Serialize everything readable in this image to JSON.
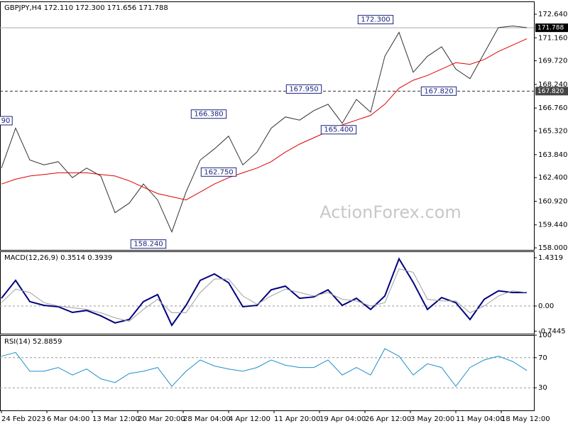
{
  "chart_data": [
    {
      "type": "line",
      "title": "GBPJPY,H4  172.110 172.300 171.656 171.788",
      "watermark": "ActionForex.com",
      "ylim": [
        157.87,
        173.44
      ],
      "yticks": [
        {
          "value": 172.64,
          "label": "172.640"
        },
        {
          "value": 171.16,
          "label": "171.160"
        },
        {
          "value": 169.72,
          "label": "169.720"
        },
        {
          "value": 168.24,
          "label": "168.240"
        },
        {
          "value": 166.76,
          "label": "166.760"
        },
        {
          "value": 165.32,
          "label": "165.320"
        },
        {
          "value": 163.84,
          "label": "163.840"
        },
        {
          "value": 162.4,
          "label": "162.400"
        },
        {
          "value": 160.92,
          "label": "160.920"
        },
        {
          "value": 159.44,
          "label": "159.440"
        },
        {
          "value": 158.0,
          "label": "158.000"
        }
      ],
      "series": [
        {
          "name": "GBPJPY",
          "color": "#333333",
          "values": [
            163.0,
            165.5,
            163.5,
            163.2,
            163.4,
            162.4,
            163.0,
            162.5,
            160.2,
            160.8,
            162.0,
            161.0,
            159.0,
            161.5,
            163.5,
            164.2,
            165.0,
            163.2,
            164.0,
            165.5,
            166.2,
            166.0,
            166.6,
            167.0,
            165.8,
            167.3,
            166.5,
            170.0,
            171.5,
            169.0,
            170.0,
            170.6,
            169.2,
            168.6,
            170.2,
            171.8,
            171.9,
            171.8
          ]
        },
        {
          "name": "MA",
          "color": "#e00000",
          "values": [
            162.0,
            162.3,
            162.5,
            162.6,
            162.7,
            162.7,
            162.7,
            162.6,
            162.5,
            162.2,
            161.8,
            161.4,
            161.2,
            161.0,
            161.5,
            162.0,
            162.4,
            162.7,
            163.0,
            163.4,
            164.0,
            164.5,
            164.9,
            165.3,
            165.7,
            166.0,
            166.3,
            167.0,
            168.0,
            168.5,
            168.8,
            169.2,
            169.6,
            169.5,
            169.8,
            170.3,
            170.7,
            171.1
          ]
        }
      ],
      "levels": [
        {
          "value": 171.788,
          "label": "171.788",
          "style": "solid"
        },
        {
          "value": 167.82,
          "label": "167.820",
          "style": "dashed"
        }
      ],
      "annotations": [
        {
          "label": "172.300",
          "value": 172.3
        },
        {
          "label": "167.950",
          "value": 167.95
        },
        {
          "label": "166.380",
          "value": 166.38
        },
        {
          "label": "162.750",
          "value": 162.75
        },
        {
          "label": "158.240",
          "value": 158.24
        },
        {
          "label": "165.400",
          "value": 165.4
        },
        {
          "label": "167.820",
          "value": 167.82
        },
        {
          "label": "90"
        }
      ]
    },
    {
      "type": "line",
      "title": "MACD(12,26,9) 0.3514 0.3939",
      "ylim": [
        -0.821,
        1.621
      ],
      "yticks": [
        1.4319,
        {
          "value": 0,
          "label": "0.00"
        },
        -0.7445
      ],
      "dashed_levels": [
        0
      ],
      "series": [
        {
          "name": "MACD",
          "color": "#000080",
          "values": [
            0.23,
            0.76,
            0.13,
            0.02,
            -0.02,
            -0.19,
            -0.13,
            -0.29,
            -0.5,
            -0.4,
            0.13,
            0.34,
            -0.57,
            0.02,
            0.76,
            0.95,
            0.69,
            -0.02,
            0.02,
            0.48,
            0.59,
            0.23,
            0.27,
            0.48,
            0.02,
            0.23,
            -0.1,
            0.3,
            1.4,
            0.7,
            -0.1,
            0.25,
            0.1,
            -0.4,
            0.2,
            0.45,
            0.4,
            0.4
          ]
        },
        {
          "name": "Signal",
          "color": "#a0a0a0",
          "values": [
            0.1,
            0.5,
            0.4,
            0.1,
            0.0,
            -0.05,
            -0.1,
            -0.2,
            -0.35,
            -0.45,
            -0.1,
            0.2,
            -0.2,
            -0.2,
            0.4,
            0.8,
            0.8,
            0.3,
            0.05,
            0.3,
            0.5,
            0.4,
            0.3,
            0.4,
            0.2,
            0.15,
            0.0,
            0.1,
            1.1,
            1.0,
            0.2,
            0.15,
            0.15,
            -0.2,
            0.0,
            0.3,
            0.45,
            0.4
          ]
        }
      ]
    },
    {
      "type": "line",
      "title": "RSI(14) 52.8859",
      "ylim": [
        0,
        100
      ],
      "yticks": [
        100,
        70,
        30
      ],
      "dashed_levels": [
        70,
        30
      ],
      "series": [
        {
          "name": "RSI",
          "color": "#1e90c8",
          "values": [
            72,
            77,
            52,
            52,
            57,
            47,
            55,
            42,
            37,
            49,
            52,
            57,
            32,
            52,
            67,
            59,
            55,
            52,
            57,
            67,
            60,
            57,
            57,
            67,
            47,
            57,
            47,
            82,
            72,
            47,
            62,
            57,
            32,
            57,
            67,
            72,
            65,
            53
          ]
        }
      ],
      "x_labels": [
        "24 Feb 2023",
        "6 Mar 04:00",
        "13 Mar 12:00",
        "20 Mar 20:00",
        "28 Mar 04:00",
        "4 Apr 12:00",
        "11 Apr 20:00",
        "19 Apr 04:00",
        "26 Apr 12:00",
        "3 May 20:00",
        "11 May 04:00",
        "18 May 12:00"
      ]
    }
  ]
}
